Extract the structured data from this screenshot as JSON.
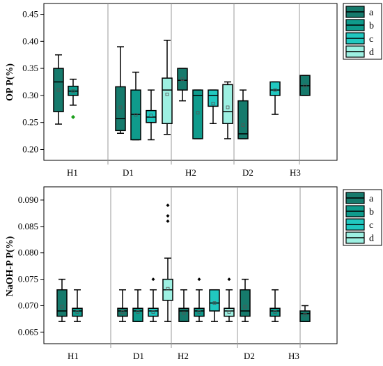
{
  "chart_data": [
    {
      "type": "box",
      "ylabel": "OP P(%)",
      "ylim": [
        0.18,
        0.47
      ],
      "yticks": [
        "0.20",
        "0.25",
        "0.30",
        "0.35",
        "0.40",
        "0.45"
      ],
      "group_labels": [
        "H1",
        "D1",
        "H2",
        "D2",
        "H3"
      ],
      "legend": [
        {
          "label": "a",
          "color": "#167a6c"
        },
        {
          "label": "b",
          "color": "#0f9b8c"
        },
        {
          "label": "c",
          "color": "#21c8c0"
        },
        {
          "label": "d",
          "color": "#9df0e2"
        }
      ],
      "boxes": [
        {
          "group": "H1",
          "series": "a",
          "min": 0.247,
          "q1": 0.27,
          "median": 0.325,
          "q3": 0.35,
          "max": 0.375,
          "mean": 0.31,
          "outliers": []
        },
        {
          "group": "H1",
          "series": "b",
          "min": 0.282,
          "q1": 0.3,
          "median": 0.308,
          "q3": 0.317,
          "max": 0.33,
          "mean": 0.308,
          "outliers": [
            0.26
          ]
        },
        {
          "group": "D1",
          "series": "a",
          "min": 0.23,
          "q1": 0.235,
          "median": 0.257,
          "q3": 0.316,
          "max": 0.39,
          "mean": 0.278,
          "outliers": []
        },
        {
          "group": "D1",
          "series": "b",
          "min": 0.218,
          "q1": 0.218,
          "median": 0.265,
          "q3": 0.31,
          "max": 0.343,
          "mean": 0.264,
          "outliers": []
        },
        {
          "group": "D1",
          "series": "c",
          "min": 0.218,
          "q1": 0.25,
          "median": 0.26,
          "q3": 0.272,
          "max": 0.31,
          "mean": 0.263,
          "outliers": []
        },
        {
          "group": "D1",
          "series": "d",
          "min": 0.228,
          "q1": 0.248,
          "median": 0.31,
          "q3": 0.332,
          "max": 0.402,
          "mean": 0.302,
          "outliers": []
        },
        {
          "group": "H2",
          "series": "a",
          "min": 0.29,
          "q1": 0.31,
          "median": 0.328,
          "q3": 0.35,
          "max": 0.35,
          "mean": 0.33,
          "outliers": []
        },
        {
          "group": "H2",
          "series": "b",
          "min": 0.22,
          "q1": 0.22,
          "median": 0.3,
          "q3": 0.31,
          "max": 0.31,
          "mean": 0.268,
          "outliers": []
        },
        {
          "group": "H2",
          "series": "c",
          "min": 0.248,
          "q1": 0.28,
          "median": 0.3,
          "q3": 0.31,
          "max": 0.31,
          "mean": 0.285,
          "outliers": []
        },
        {
          "group": "H2",
          "series": "d",
          "min": 0.22,
          "q1": 0.248,
          "median": 0.27,
          "q3": 0.32,
          "max": 0.325,
          "mean": 0.278,
          "outliers": []
        },
        {
          "group": "D2",
          "series": "a",
          "min": 0.22,
          "q1": 0.22,
          "median": 0.229,
          "q3": 0.29,
          "max": 0.31,
          "mean": 0.245,
          "outliers": []
        },
        {
          "group": "H3",
          "series": "c",
          "min": 0.265,
          "q1": 0.3,
          "median": 0.31,
          "q3": 0.325,
          "max": 0.325,
          "mean": 0.31,
          "outliers": []
        },
        {
          "group": "H3",
          "series": "a",
          "min": 0.3,
          "q1": 0.3,
          "median": 0.318,
          "q3": 0.337,
          "max": 0.337,
          "mean": 0.318,
          "outliers": []
        }
      ]
    },
    {
      "type": "box",
      "ylabel": "NaOH-P P(%)",
      "ylim": [
        0.0628,
        0.0925
      ],
      "yticks": [
        "0.065",
        "0.070",
        "0.075",
        "0.080",
        "0.085",
        "0.090"
      ],
      "group_labels": [
        "H1",
        "D1",
        "H2",
        "D2",
        "H3"
      ],
      "legend": [
        {
          "label": "a",
          "color": "#167a6c"
        },
        {
          "label": "b",
          "color": "#0f9b8c"
        },
        {
          "label": "c",
          "color": "#21c8c0"
        },
        {
          "label": "d",
          "color": "#9df0e2"
        }
      ],
      "boxes": [
        {
          "group": "H1",
          "series": "a",
          "min": 0.067,
          "q1": 0.068,
          "median": 0.069,
          "q3": 0.073,
          "max": 0.075,
          "mean": 0.0698,
          "outliers": []
        },
        {
          "group": "H1",
          "series": "b",
          "min": 0.067,
          "q1": 0.068,
          "median": 0.069,
          "q3": 0.0695,
          "max": 0.073,
          "mean": 0.0688,
          "outliers": []
        },
        {
          "group": "D1",
          "series": "a",
          "min": 0.067,
          "q1": 0.068,
          "median": 0.069,
          "q3": 0.0695,
          "max": 0.073,
          "mean": 0.0688,
          "outliers": []
        },
        {
          "group": "D1",
          "series": "b",
          "min": 0.067,
          "q1": 0.067,
          "median": 0.069,
          "q3": 0.0695,
          "max": 0.073,
          "mean": 0.0688,
          "outliers": []
        },
        {
          "group": "D1",
          "series": "c",
          "min": 0.067,
          "q1": 0.068,
          "median": 0.069,
          "q3": 0.0695,
          "max": 0.073,
          "mean": 0.0688,
          "outliers": [
            0.075
          ]
        },
        {
          "group": "D1",
          "series": "d",
          "min": 0.067,
          "q1": 0.071,
          "median": 0.073,
          "q3": 0.075,
          "max": 0.079,
          "mean": 0.0732,
          "outliers": [
            0.086,
            0.087,
            0.089
          ]
        },
        {
          "group": "H2",
          "series": "a",
          "min": 0.067,
          "q1": 0.067,
          "median": 0.069,
          "q3": 0.0695,
          "max": 0.073,
          "mean": 0.0686,
          "outliers": []
        },
        {
          "group": "H2",
          "series": "b",
          "min": 0.067,
          "q1": 0.068,
          "median": 0.069,
          "q3": 0.0695,
          "max": 0.073,
          "mean": 0.0688,
          "outliers": [
            0.075
          ]
        },
        {
          "group": "H2",
          "series": "c",
          "min": 0.067,
          "q1": 0.069,
          "median": 0.0705,
          "q3": 0.073,
          "max": 0.073,
          "mean": 0.0705,
          "outliers": []
        },
        {
          "group": "H2",
          "series": "d",
          "min": 0.067,
          "q1": 0.068,
          "median": 0.069,
          "q3": 0.0695,
          "max": 0.073,
          "mean": 0.0688,
          "outliers": [
            0.075
          ]
        },
        {
          "group": "D2",
          "series": "a",
          "min": 0.067,
          "q1": 0.068,
          "median": 0.069,
          "q3": 0.073,
          "max": 0.075,
          "mean": 0.0698,
          "outliers": []
        },
        {
          "group": "H3",
          "series": "b",
          "min": 0.067,
          "q1": 0.068,
          "median": 0.069,
          "q3": 0.0695,
          "max": 0.073,
          "mean": 0.0688,
          "outliers": []
        },
        {
          "group": "H3",
          "series": "a",
          "min": 0.067,
          "q1": 0.067,
          "median": 0.0685,
          "q3": 0.069,
          "max": 0.07,
          "mean": 0.0683,
          "outliers": []
        }
      ]
    }
  ]
}
